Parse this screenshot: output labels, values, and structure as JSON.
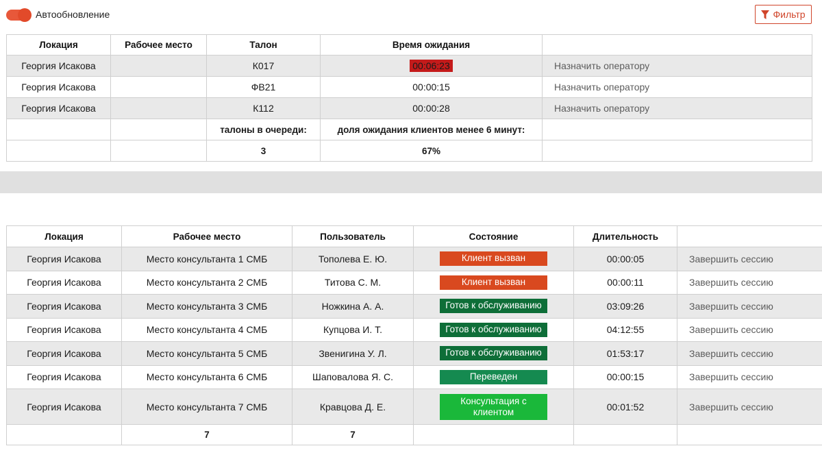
{
  "header": {
    "autorefresh_label": "Автообновление",
    "filter_label": "Фильтр"
  },
  "queue": {
    "columns": [
      "Локация",
      "Рабочее место",
      "Талон",
      "Время ожидания",
      ""
    ],
    "rows": [
      {
        "location": "Георгия Исакова",
        "workplace": "",
        "ticket": "К017",
        "wait": "00:06:23",
        "action": "Назначить оператору"
      },
      {
        "location": "Георгия Исакова",
        "workplace": "",
        "ticket": "ФВ21",
        "wait": "00:00:15",
        "action": "Назначить оператору"
      },
      {
        "location": "Георгия Исакова",
        "workplace": "",
        "ticket": "К112",
        "wait": "00:00:28",
        "action": "Назначить оператору"
      }
    ],
    "summary_labels": {
      "tickets_in_queue": "талоны в очереди:",
      "share_under_6": "доля ожидания клиентов менее 6 минут:"
    },
    "summary_values": {
      "tickets_in_queue": "3",
      "share_under_6": "67%"
    }
  },
  "sessions": {
    "columns": [
      "Локация",
      "Рабочее место",
      "Пользователь",
      "Состояние",
      "Длительность",
      ""
    ],
    "rows": [
      {
        "location": "Георгия Исакова",
        "workplace": "Место консультанта 1 СМБ",
        "user": "Тополева Е. Ю.",
        "state": "Клиент вызван",
        "duration": "00:00:05",
        "action": "Завершить сессию"
      },
      {
        "location": "Георгия Исакова",
        "workplace": "Место консультанта 2 СМБ",
        "user": "Титова С. М.",
        "state": "Клиент вызван",
        "duration": "00:00:11",
        "action": "Завершить сессию"
      },
      {
        "location": "Георгия Исакова",
        "workplace": "Место консультанта 3 СМБ",
        "user": "Ножкина А. А.",
        "state": "Готов к обслуживанию",
        "duration": "03:09:26",
        "action": "Завершить сессию"
      },
      {
        "location": "Георгия Исакова",
        "workplace": "Место консультанта 4 СМБ",
        "user": "Купцова И. Т.",
        "state": "Готов к обслуживанию",
        "duration": "04:12:55",
        "action": "Завершить сессию"
      },
      {
        "location": "Георгия Исакова",
        "workplace": "Место консультанта 5 СМБ",
        "user": "Звенигина У. Л.",
        "state": "Готов к обслуживанию",
        "duration": "01:53:17",
        "action": "Завершить сессию"
      },
      {
        "location": "Георгия Исакова",
        "workplace": "Место консультанта 6 СМБ",
        "user": "Шаповалова Я. С.",
        "state": "Переведен",
        "duration": "00:00:15",
        "action": "Завершить сессию"
      },
      {
        "location": "Георгия Исакова",
        "workplace": "Место консультанта 7 СМБ",
        "user": "Кравцова Д. Е.",
        "state": "Консультация с клиентом",
        "duration": "00:01:52",
        "action": "Завершить сессию"
      }
    ],
    "totals": {
      "workplaces": "7",
      "users": "7"
    }
  },
  "colors": {
    "accent": "#e24a2a",
    "wait_exceeded": "#c41b1b",
    "state_called": "#d9491f",
    "state_ready": "#0e6e38",
    "state_transferred": "#158a50",
    "state_consulting": "#1ab83a"
  },
  "icons": {
    "filter": "filter-funnel-icon"
  }
}
